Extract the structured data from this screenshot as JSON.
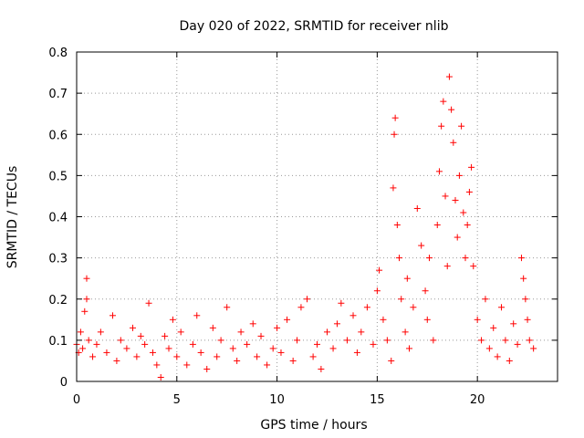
{
  "chart_data": {
    "type": "scatter",
    "title": "Day 020 of 2022, SRMTID for receiver nlib",
    "xlabel": "GPS time / hours",
    "ylabel": "SRMTID / TECUs",
    "xlim": [
      0,
      24
    ],
    "ylim": [
      0,
      0.8
    ],
    "x_ticks": [
      0,
      5,
      10,
      15,
      20
    ],
    "x_tick_labels": [
      "0",
      "5",
      "10",
      "15",
      "20"
    ],
    "y_ticks": [
      0,
      0.1,
      0.2,
      0.3,
      0.4,
      0.5,
      0.6,
      0.7,
      0.8
    ],
    "y_tick_labels": [
      "0",
      "0.1",
      "0.2",
      "0.3",
      "0.4",
      "0.5",
      "0.6",
      "0.7",
      "0.8"
    ],
    "grid": true,
    "marker": "+",
    "color": "#ff0000",
    "series": [
      {
        "name": "nlib",
        "x": [
          0.0,
          0.1,
          0.2,
          0.3,
          0.4,
          0.5,
          0.5,
          0.6,
          0.8,
          1.0,
          1.2,
          1.5,
          1.8,
          2.0,
          2.2,
          2.5,
          2.8,
          3.0,
          3.2,
          3.4,
          3.6,
          3.8,
          4.0,
          4.2,
          4.4,
          4.6,
          4.8,
          5.0,
          5.2,
          5.5,
          5.8,
          6.0,
          6.2,
          6.5,
          6.8,
          7.0,
          7.2,
          7.5,
          7.8,
          8.0,
          8.2,
          8.5,
          8.8,
          9.0,
          9.2,
          9.5,
          9.8,
          10.0,
          10.2,
          10.5,
          10.8,
          11.0,
          11.2,
          11.5,
          11.8,
          12.0,
          12.2,
          12.5,
          12.8,
          13.0,
          13.2,
          13.5,
          13.8,
          14.0,
          14.2,
          14.5,
          14.8,
          15.0,
          15.1,
          15.3,
          15.5,
          15.7,
          15.8,
          15.85,
          15.9,
          16.0,
          16.1,
          16.2,
          16.4,
          16.5,
          16.6,
          16.8,
          17.0,
          17.2,
          17.4,
          17.5,
          17.6,
          17.8,
          18.0,
          18.1,
          18.2,
          18.3,
          18.4,
          18.5,
          18.6,
          18.7,
          18.8,
          18.9,
          19.0,
          19.1,
          19.2,
          19.3,
          19.4,
          19.5,
          19.6,
          19.7,
          19.8,
          20.0,
          20.2,
          20.4,
          20.6,
          20.8,
          21.0,
          21.2,
          21.4,
          21.6,
          21.8,
          22.0,
          22.2,
          22.3,
          22.4,
          22.5,
          22.6,
          22.8
        ],
        "y": [
          0.09,
          0.07,
          0.12,
          0.08,
          0.17,
          0.25,
          0.2,
          0.1,
          0.06,
          0.09,
          0.12,
          0.07,
          0.16,
          0.05,
          0.1,
          0.08,
          0.13,
          0.06,
          0.11,
          0.09,
          0.19,
          0.07,
          0.04,
          0.01,
          0.11,
          0.08,
          0.15,
          0.06,
          0.12,
          0.04,
          0.09,
          0.16,
          0.07,
          0.03,
          0.13,
          0.06,
          0.1,
          0.18,
          0.08,
          0.05,
          0.12,
          0.09,
          0.14,
          0.06,
          0.11,
          0.04,
          0.08,
          0.13,
          0.07,
          0.15,
          0.05,
          0.1,
          0.18,
          0.2,
          0.06,
          0.09,
          0.03,
          0.12,
          0.08,
          0.14,
          0.19,
          0.1,
          0.16,
          0.07,
          0.12,
          0.18,
          0.09,
          0.22,
          0.27,
          0.15,
          0.1,
          0.05,
          0.47,
          0.6,
          0.64,
          0.38,
          0.3,
          0.2,
          0.12,
          0.25,
          0.08,
          0.18,
          0.42,
          0.33,
          0.22,
          0.15,
          0.3,
          0.1,
          0.38,
          0.51,
          0.62,
          0.68,
          0.45,
          0.28,
          0.74,
          0.66,
          0.58,
          0.44,
          0.35,
          0.5,
          0.62,
          0.41,
          0.3,
          0.38,
          0.46,
          0.52,
          0.28,
          0.15,
          0.1,
          0.2,
          0.08,
          0.13,
          0.06,
          0.18,
          0.1,
          0.05,
          0.14,
          0.09,
          0.3,
          0.25,
          0.2,
          0.15,
          0.1,
          0.08
        ]
      }
    ]
  }
}
